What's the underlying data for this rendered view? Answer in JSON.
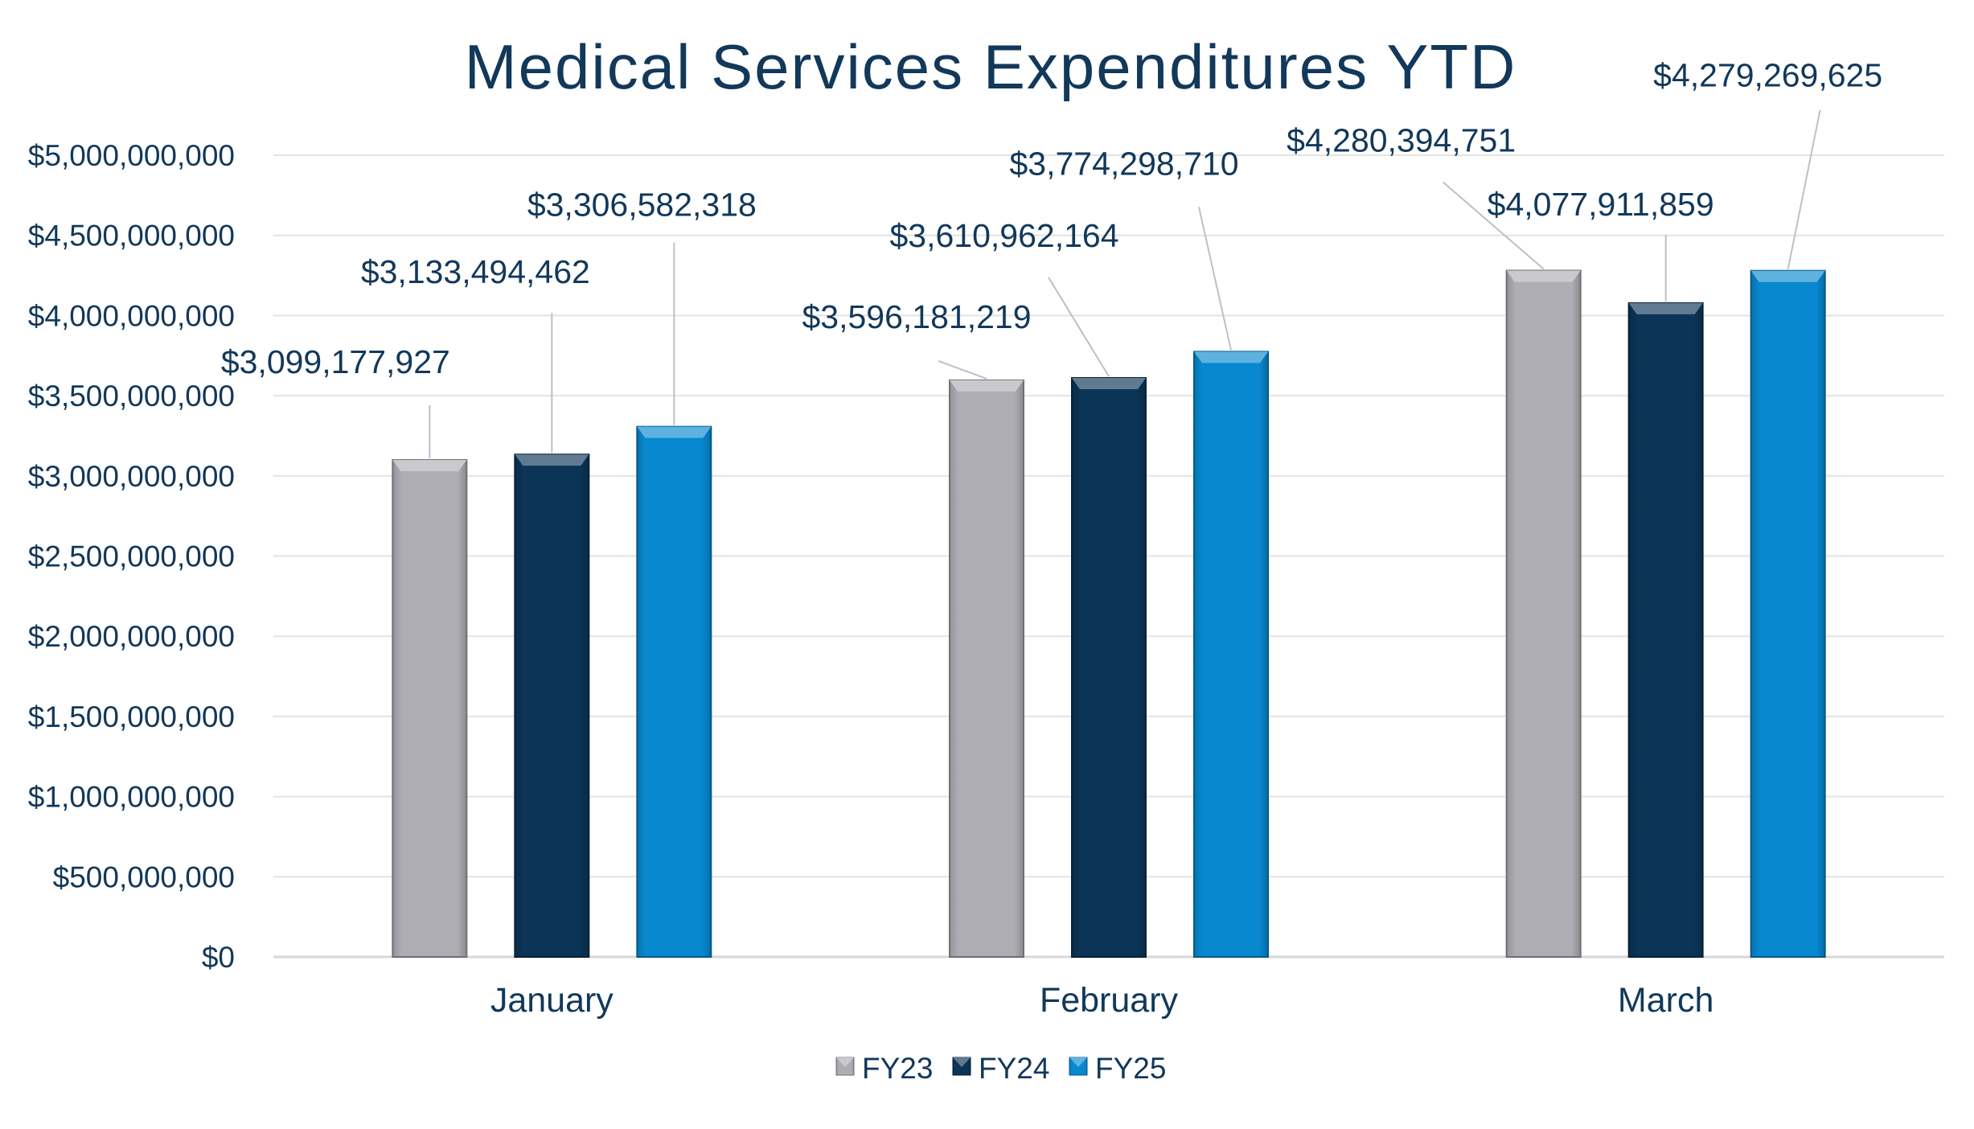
{
  "chart_data": {
    "type": "bar",
    "title": "Medical Services Expenditures YTD",
    "categories": [
      "January",
      "February",
      "March"
    ],
    "ylim": [
      0,
      5000000000
    ],
    "yticks": [
      {
        "value": 0,
        "label": "$0"
      },
      {
        "value": 500000000,
        "label": "$500,000,000"
      },
      {
        "value": 1000000000,
        "label": "$1,000,000,000"
      },
      {
        "value": 1500000000,
        "label": "$1,500,000,000"
      },
      {
        "value": 2000000000,
        "label": "$2,000,000,000"
      },
      {
        "value": 2500000000,
        "label": "$2,500,000,000"
      },
      {
        "value": 3000000000,
        "label": "$3,000,000,000"
      },
      {
        "value": 3500000000,
        "label": "$3,500,000,000"
      },
      {
        "value": 4000000000,
        "label": "$4,000,000,000"
      },
      {
        "value": 4500000000,
        "label": "$4,500,000,000"
      },
      {
        "value": 5000000000,
        "label": "$5,000,000,000"
      }
    ],
    "grid": true,
    "legend_position": "bottom",
    "series": [
      {
        "name": "FY23",
        "color": "#adadb3",
        "values": [
          3099177927,
          3596181219,
          4280394751
        ],
        "labels": [
          "$3,099,177,927",
          "$3,596,181,219",
          "$4,280,394,751"
        ]
      },
      {
        "name": "FY24",
        "color": "#0b3456",
        "values": [
          3133494462,
          3610962164,
          4077911859
        ],
        "labels": [
          "$3,133,494,462",
          "$3,610,962,164",
          "$4,077,911,859"
        ]
      },
      {
        "name": "FY25",
        "color": "#0788cf",
        "values": [
          3306582318,
          3774298710,
          4279269625
        ],
        "labels": [
          "$3,306,582,318",
          "$3,774,298,710",
          "$4,279,269,625"
        ]
      }
    ]
  }
}
